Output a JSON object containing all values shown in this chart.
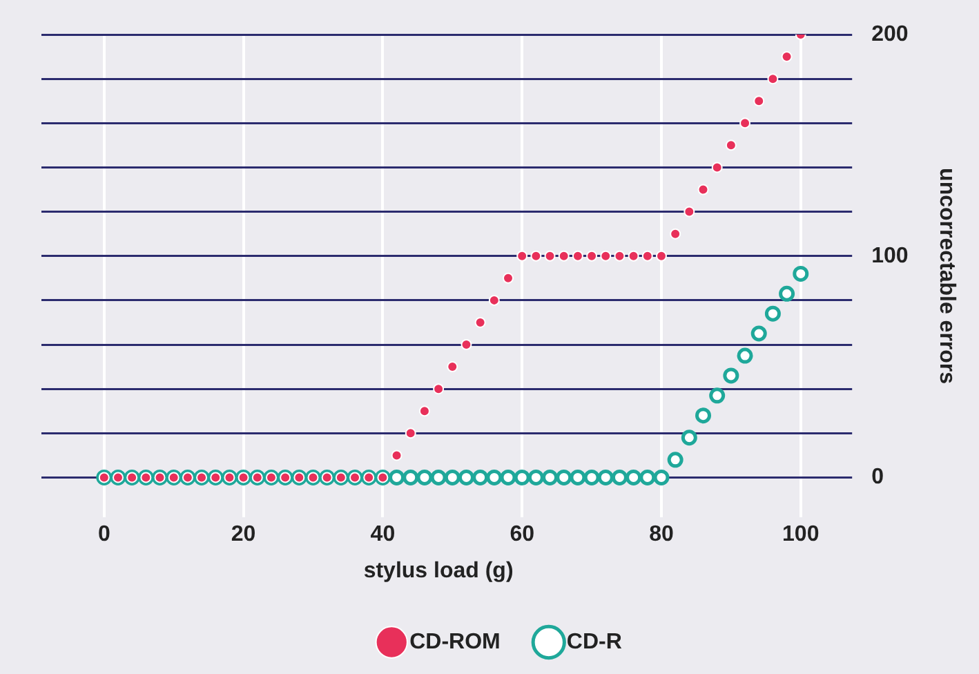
{
  "chart_data": {
    "type": "scatter",
    "xlabel": "stylus load (g)",
    "ylabel": "uncorrectable errors",
    "xlim": [
      -9,
      105
    ],
    "ylim": [
      -18,
      200
    ],
    "xticks": [
      0,
      20,
      40,
      60,
      80,
      100
    ],
    "yticks": [
      0,
      {
        "value": 20,
        "label": null
      },
      {
        "value": 40,
        "label": null
      },
      {
        "value": 60,
        "label": null
      },
      {
        "value": 80,
        "label": null
      },
      100,
      {
        "value": 120,
        "label": null
      },
      {
        "value": 140,
        "label": null
      },
      {
        "value": 160,
        "label": null
      },
      {
        "value": 180,
        "label": null
      },
      200
    ],
    "grid": true,
    "legend": "bottom",
    "marker": "circle",
    "x": [
      0,
      2,
      4,
      6,
      8,
      10,
      12,
      14,
      16,
      18,
      20,
      22,
      24,
      26,
      28,
      30,
      32,
      34,
      36,
      38,
      40,
      42,
      44,
      46,
      48,
      50,
      52,
      54,
      56,
      58,
      60,
      62,
      64,
      66,
      68,
      70,
      72,
      74,
      76,
      78,
      80,
      82,
      84,
      86,
      88,
      90,
      92,
      94,
      96,
      98,
      100
    ],
    "series": [
      {
        "name": "CD-ROM",
        "color": "#e8305a",
        "values": [
          0,
          0,
          0,
          0,
          0,
          0,
          0,
          0,
          0,
          0,
          0,
          0,
          0,
          0,
          0,
          0,
          0,
          0,
          0,
          0,
          0,
          10,
          20,
          30,
          40,
          50,
          60,
          70,
          80,
          90,
          100,
          100,
          100,
          100,
          100,
          100,
          100,
          100,
          100,
          100,
          100,
          110,
          120,
          130,
          140,
          150,
          160,
          170,
          180,
          190,
          200
        ]
      },
      {
        "name": "CD-R",
        "color": "#1fa89a",
        "values": [
          0,
          0,
          0,
          0,
          0,
          0,
          0,
          0,
          0,
          0,
          0,
          0,
          0,
          0,
          0,
          0,
          0,
          0,
          0,
          0,
          0,
          0,
          0,
          0,
          0,
          0,
          0,
          0,
          0,
          0,
          0,
          0,
          0,
          0,
          0,
          0,
          0,
          0,
          0,
          0,
          0,
          8,
          18,
          28,
          37,
          46,
          55,
          65,
          74,
          83,
          92
        ]
      }
    ]
  }
}
